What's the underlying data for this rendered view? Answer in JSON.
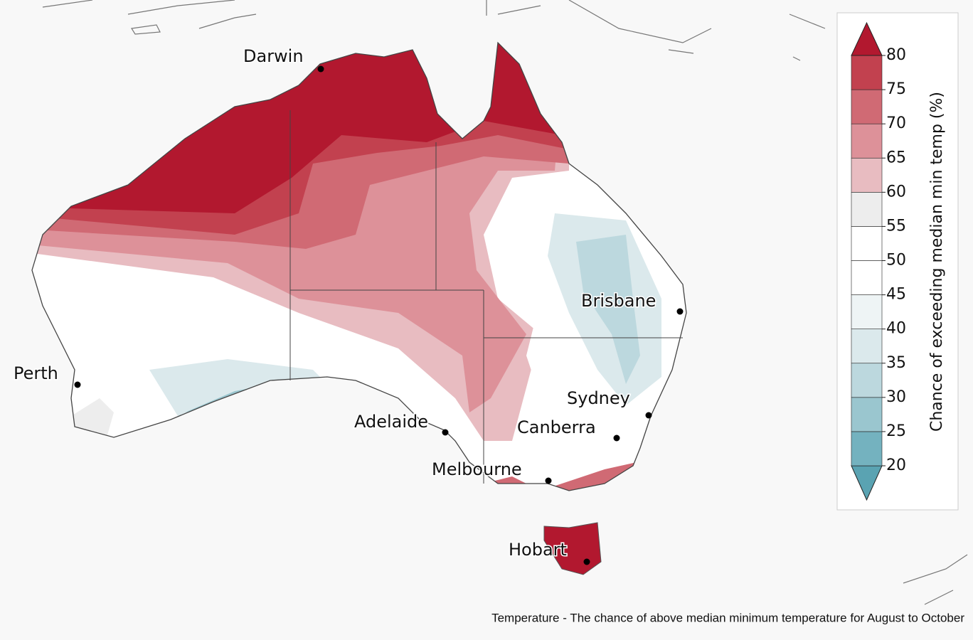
{
  "map": {
    "cities": [
      "Darwin",
      "Brisbane",
      "Perth",
      "Sydney",
      "Adelaide",
      "Canberra",
      "Melbourne",
      "Hobart"
    ],
    "legend": {
      "title": "Chance of exceeding median min temp (%)",
      "ticks": [
        20,
        25,
        30,
        35,
        40,
        45,
        50,
        55,
        60,
        65,
        70,
        75,
        80
      ],
      "colors": [
        "#5aa3b2",
        "#74b2bf",
        "#9ac6cf",
        "#bcd8de",
        "#dbe9ec",
        "#eef4f5",
        "#ffffff",
        "#ffffff",
        "#ededed",
        "#e8bcc1",
        "#dd9199",
        "#d06a74",
        "#c2414f",
        "#b2182f"
      ]
    }
  },
  "caption": "Temperature - The chance of above median minimum temperature for August to October"
}
